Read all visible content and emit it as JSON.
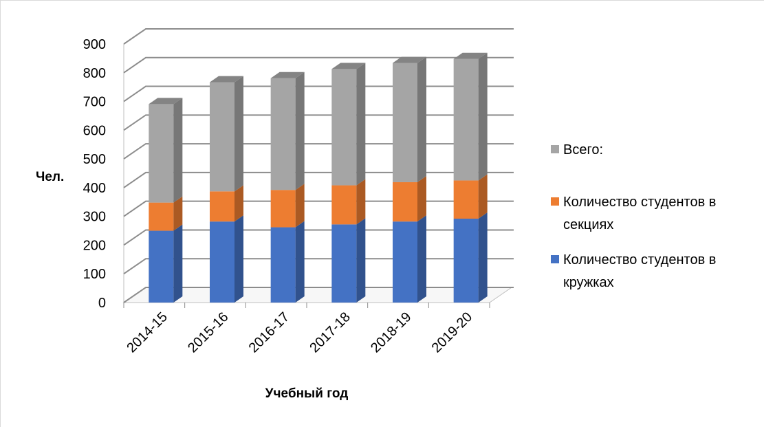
{
  "chart_data": {
    "type": "bar",
    "stacked": true,
    "three_d": true,
    "categories": [
      "2014-15",
      "2015-16",
      "2016-17",
      "2017-18",
      "2018-19",
      "2019-20"
    ],
    "series": [
      {
        "name": "Количество студентов в кружках",
        "values": [
          250,
          282,
          262,
          272,
          282,
          292
        ],
        "color": "#4472c4"
      },
      {
        "name": "Количество студентов в секциях",
        "values": [
          98,
          105,
          130,
          136,
          137,
          133
        ],
        "color": "#ed7d31"
      },
      {
        "name": "Всего:",
        "values": [
          343,
          380,
          389,
          405,
          415,
          423
        ],
        "color": "#a5a5a5"
      }
    ],
    "xlabel": "Учебный год",
    "ylabel": "Чел.",
    "ylim": [
      0,
      900
    ],
    "yticks": [
      0,
      100,
      200,
      300,
      400,
      500,
      600,
      700,
      800,
      900
    ],
    "grid": true,
    "legend": {
      "position": "right",
      "entries": [
        {
          "lines": [
            "Всего:"
          ],
          "color": "#a5a5a5"
        },
        {
          "lines": [
            "Количество студентов в",
            "секциях"
          ],
          "color": "#ed7d31"
        },
        {
          "lines": [
            "Количество студентов в",
            "кружках"
          ],
          "color": "#4472c4"
        }
      ]
    }
  }
}
